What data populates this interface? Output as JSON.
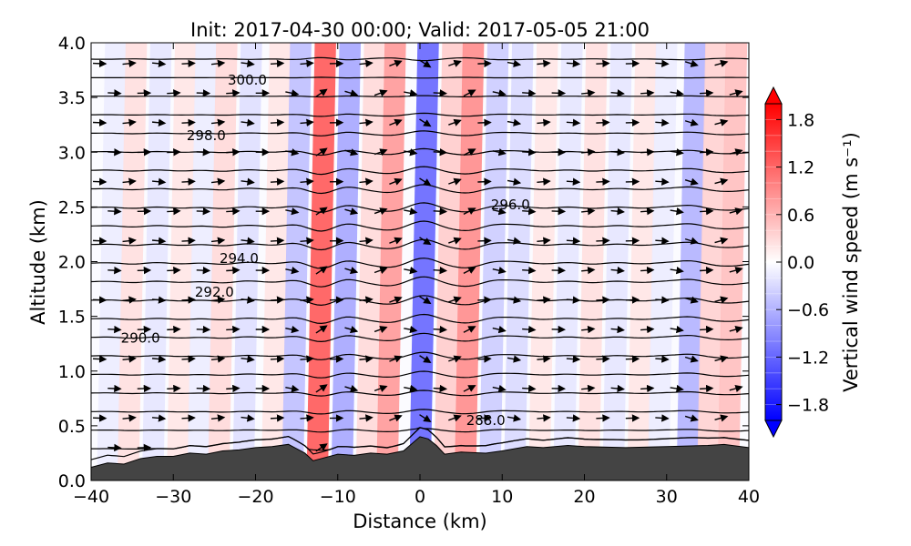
{
  "chart_data": {
    "type": "heatmap",
    "title": "Init: 2017-04-30 00:00; Valid: 2017-05-05 21:00",
    "xlabel": "Distance (km)",
    "ylabel": "Altitude (km)",
    "xlim": [
      -40,
      40
    ],
    "ylim": [
      0.0,
      4.0
    ],
    "xticks": [
      -40,
      -30,
      -20,
      -10,
      0,
      10,
      20,
      30,
      40
    ],
    "xtick_labels": [
      "−40",
      "−30",
      "−20",
      "−10",
      "0",
      "10",
      "20",
      "30",
      "40"
    ],
    "yticks": [
      0.0,
      0.5,
      1.0,
      1.5,
      2.0,
      2.5,
      3.0,
      3.5,
      4.0
    ],
    "ytick_labels": [
      "0.0",
      "0.5",
      "1.0",
      "1.5",
      "2.0",
      "2.5",
      "3.0",
      "3.5",
      "4.0"
    ],
    "colorbar": {
      "label": "Vertical wind speed (m s⁻¹)",
      "vmin": -2.0,
      "vmax": 2.0,
      "ticks": [
        1.8,
        1.2,
        0.6,
        0.0,
        -0.6,
        -1.2,
        -1.8
      ],
      "tick_labels": [
        "1.8",
        "1.2",
        "0.6",
        "0.0",
        "−0.6",
        "−1.2",
        "−1.8"
      ],
      "low_color": "#0000ff",
      "mid_color": "#ffffff",
      "high_color": "#ff0000"
    },
    "vertical_wind_bands": [
      {
        "x": -37.5,
        "w": -0.15
      },
      {
        "x": -35,
        "w": 0.25
      },
      {
        "x": -32,
        "w": -0.2
      },
      {
        "x": -29,
        "w": 0.2
      },
      {
        "x": -26.5,
        "w": -0.15
      },
      {
        "x": -24,
        "w": 0.3
      },
      {
        "x": -21,
        "w": -0.25
      },
      {
        "x": -17.5,
        "w": 0.2
      },
      {
        "x": -15,
        "w": -0.5
      },
      {
        "x": -12,
        "w": 1.3
      },
      {
        "x": -9,
        "w": -0.7
      },
      {
        "x": -6,
        "w": 0.3
      },
      {
        "x": -3.5,
        "w": 0.8
      },
      {
        "x": 0.5,
        "w": -1.2
      },
      {
        "x": 3.5,
        "w": 0.4
      },
      {
        "x": 6,
        "w": 0.9
      },
      {
        "x": 9,
        "w": -0.4
      },
      {
        "x": 12,
        "w": -0.3
      },
      {
        "x": 15,
        "w": 0.2
      },
      {
        "x": 18,
        "w": -0.2
      },
      {
        "x": 21,
        "w": 0.25
      },
      {
        "x": 24,
        "w": -0.2
      },
      {
        "x": 27,
        "w": 0.2
      },
      {
        "x": 29.5,
        "w": -0.15
      },
      {
        "x": 33,
        "w": -0.6
      },
      {
        "x": 35.5,
        "w": 0.35
      },
      {
        "x": 38,
        "w": 0.5
      }
    ],
    "terrain": {
      "x": [
        -40,
        -38,
        -36,
        -34,
        -32,
        -30,
        -28,
        -26,
        -24,
        -22,
        -20,
        -18,
        -16,
        -14,
        -13,
        -12,
        -10,
        -8,
        -6,
        -4,
        -2,
        0,
        1,
        2,
        3,
        5,
        8,
        10,
        13,
        15,
        18,
        20,
        25,
        30,
        35,
        37,
        40
      ],
      "alt": [
        0.12,
        0.16,
        0.15,
        0.2,
        0.22,
        0.22,
        0.25,
        0.24,
        0.27,
        0.28,
        0.3,
        0.31,
        0.33,
        0.25,
        0.18,
        0.2,
        0.24,
        0.23,
        0.25,
        0.24,
        0.27,
        0.4,
        0.38,
        0.32,
        0.24,
        0.26,
        0.25,
        0.27,
        0.31,
        0.3,
        0.32,
        0.31,
        0.3,
        0.31,
        0.32,
        0.33,
        0.3
      ]
    },
    "theta_contour_count": 24,
    "theta_labels": [
      {
        "text": "300.0",
        "x": -21,
        "y": 3.66
      },
      {
        "text": "298.0",
        "x": -26,
        "y": 3.15
      },
      {
        "text": "296.0",
        "x": 11,
        "y": 2.52
      },
      {
        "text": "294.0",
        "x": -22,
        "y": 2.03
      },
      {
        "text": "292.0",
        "x": -25,
        "y": 1.72
      },
      {
        "text": "290.0",
        "x": -34,
        "y": 1.3
      },
      {
        "text": "288.0",
        "x": 8,
        "y": 0.55
      }
    ]
  }
}
